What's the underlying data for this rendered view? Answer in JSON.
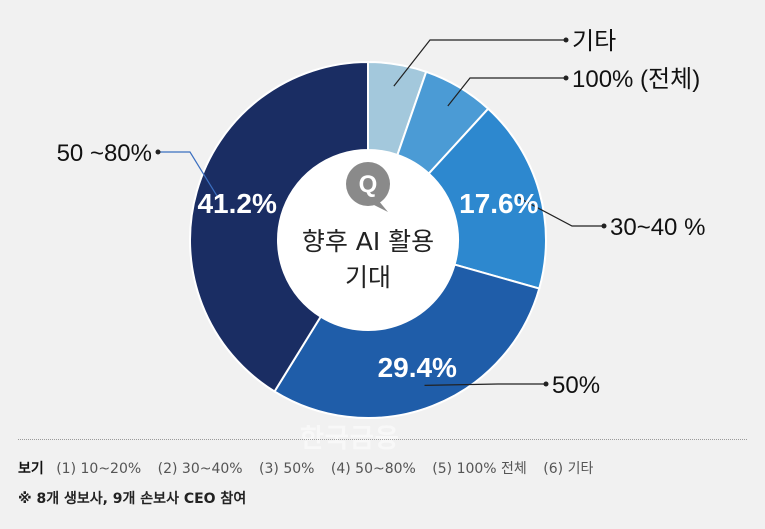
{
  "chart_data": {
    "type": "pie",
    "center_label": {
      "icon": "Q",
      "line1": "향후 AI 활용",
      "line2": "기대"
    },
    "slices": [
      {
        "label": "기타",
        "value": 5.3,
        "color": "#a3c8dc",
        "show_value": false
      },
      {
        "label": "100% (전체)",
        "value": 6.5,
        "color": "#4b9bd5",
        "show_value": false
      },
      {
        "label": "30~40 %",
        "value": 17.6,
        "color": "#2d88cf",
        "show_value": true,
        "value_label": "17.6%"
      },
      {
        "label": "50%",
        "value": 29.4,
        "color": "#1f5da9",
        "show_value": true,
        "value_label": "29.4%"
      },
      {
        "label": "50 ~80%",
        "value": 41.2,
        "color": "#1a2d63",
        "show_value": true,
        "value_label": "41.2%"
      }
    ]
  },
  "legend": {
    "title": "보기",
    "items": [
      "(1) 10~20%",
      "(2) 30~40%",
      "(3) 50%",
      "(4) 50~80%",
      "(5) 100% 전체",
      "(6) 기타"
    ]
  },
  "footnote": "※ 8개 생보사, 9개 손보사 CEO 참여",
  "watermark": "한국금융"
}
